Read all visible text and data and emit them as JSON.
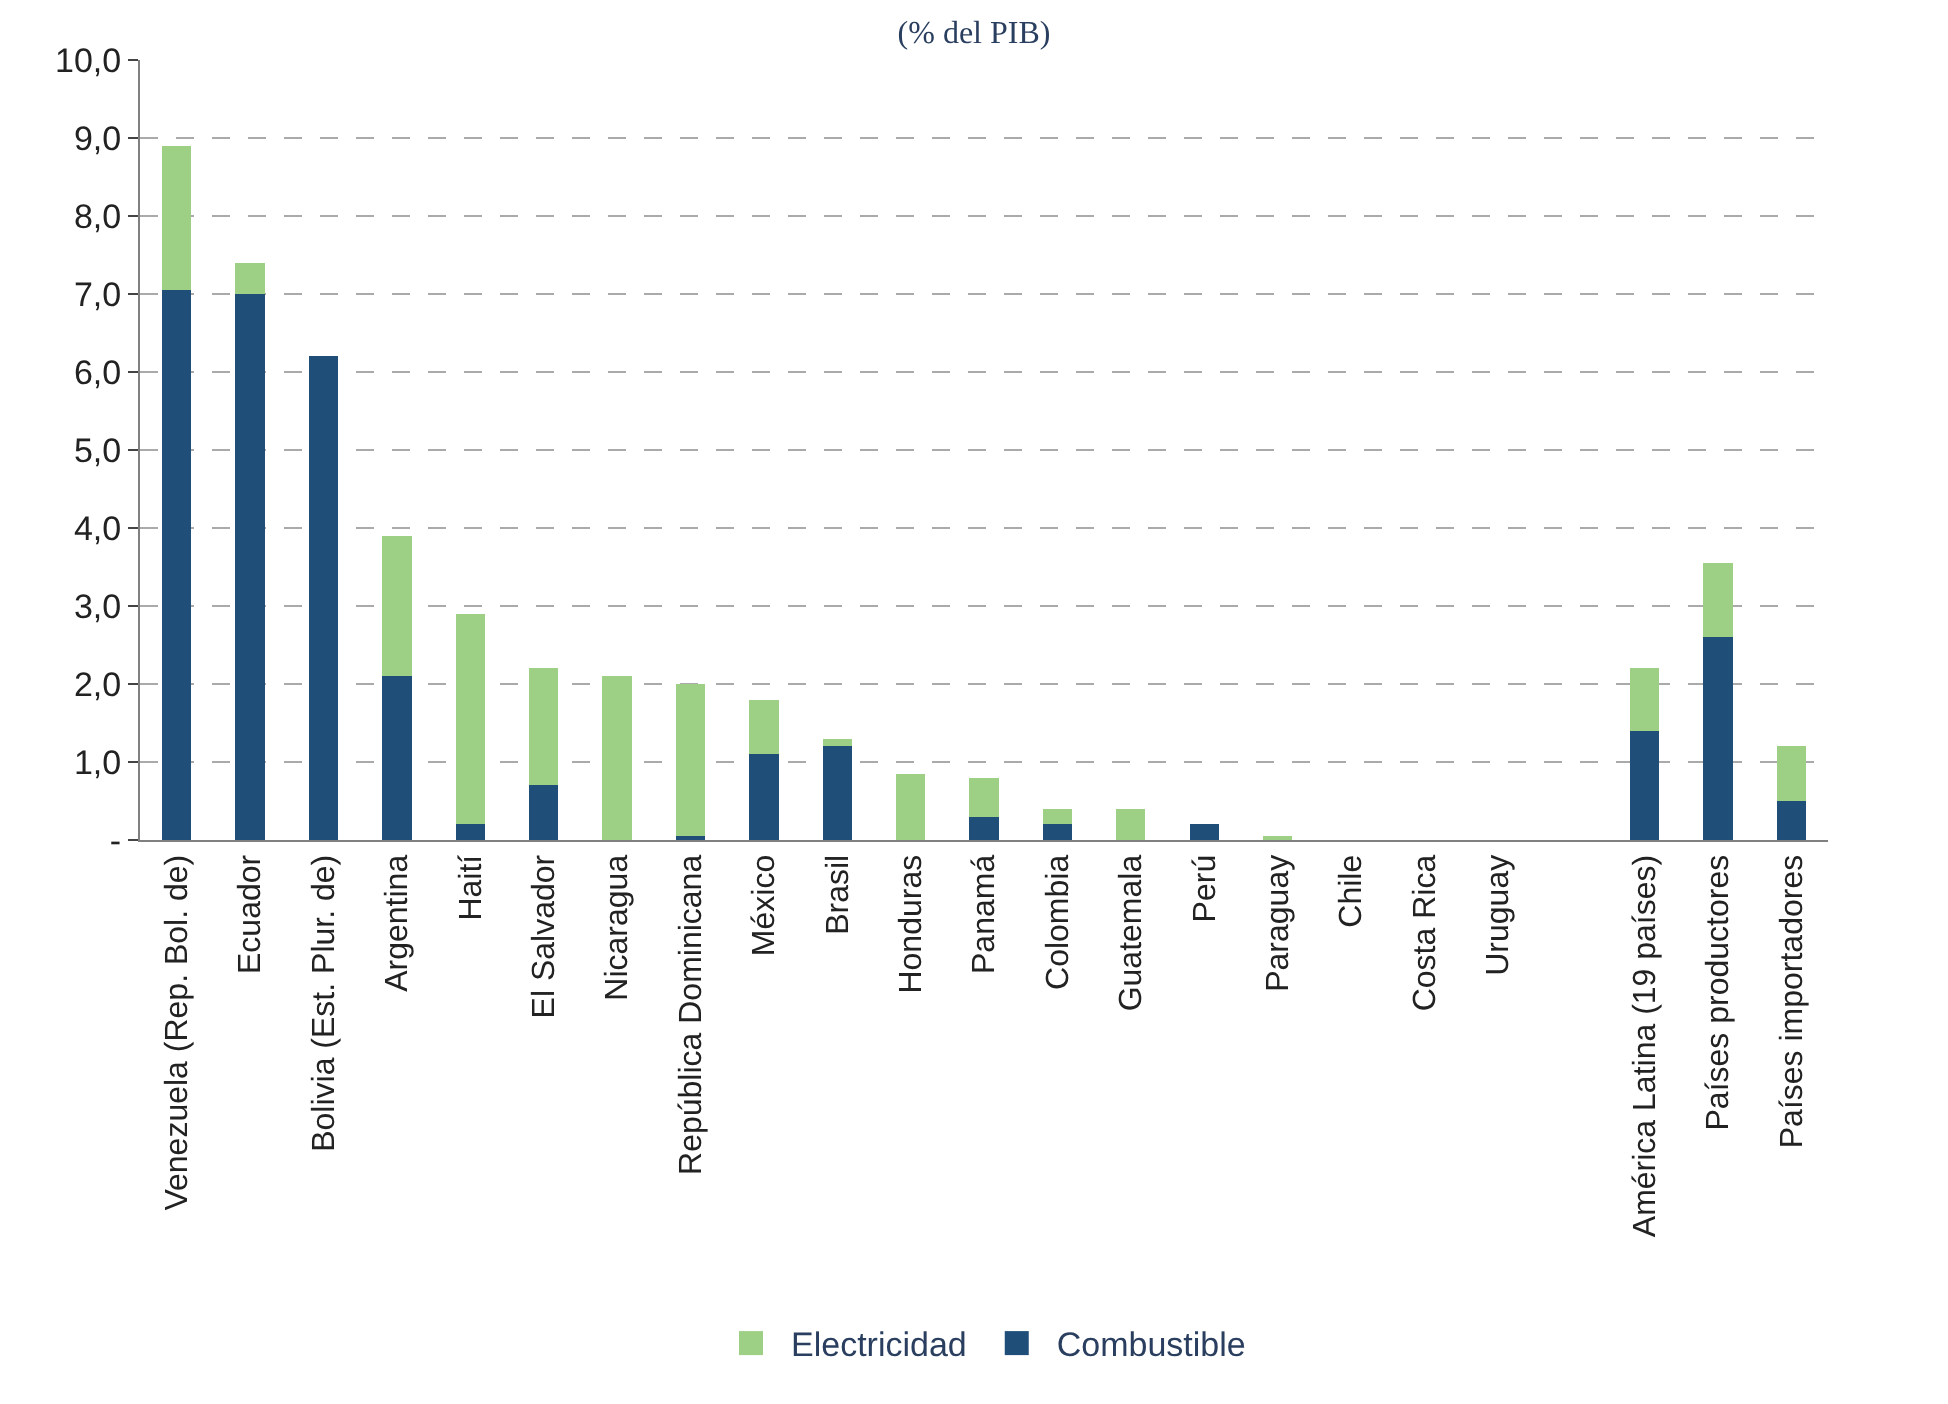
{
  "chart_data": {
    "type": "bar",
    "stacked": true,
    "subtitle": "(% del PIB)",
    "categories": [
      "Venezuela (Rep. Bol. de)",
      "Ecuador",
      "Bolivia (Est. Plur. de)",
      "Argentina",
      "Haití",
      "El Salvador",
      "Nicaragua",
      "República Dominicana",
      "México",
      "Brasil",
      "Honduras",
      "Panamá",
      "Colombia",
      "Guatemala",
      "Perú",
      "Paraguay",
      "Chile",
      "Costa Rica",
      "Uruguay",
      null,
      "América Latina (19 países)",
      "Países productores",
      "Países importadores"
    ],
    "series": [
      {
        "name": "Combustible",
        "color": "#1f4e79",
        "values": [
          7.05,
          7.0,
          6.2,
          2.1,
          0.2,
          0.7,
          0,
          0.05,
          1.1,
          1.2,
          0,
          0.3,
          0.2,
          0,
          0.2,
          0,
          0,
          0,
          0,
          null,
          1.4,
          2.6,
          0.5
        ]
      },
      {
        "name": "Electricidad",
        "color": "#9dcf85",
        "values": [
          1.85,
          0.4,
          0,
          1.8,
          2.7,
          1.5,
          2.1,
          1.95,
          0.7,
          0.1,
          0.85,
          0.5,
          0.2,
          0.4,
          0,
          0.05,
          0,
          0,
          0,
          null,
          0.8,
          0.95,
          0.7
        ]
      }
    ],
    "ylim": [
      0,
      10
    ],
    "yticks": [
      {
        "value": 0,
        "label": "-"
      },
      {
        "value": 1,
        "label": "1,0"
      },
      {
        "value": 2,
        "label": "2,0"
      },
      {
        "value": 3,
        "label": "3,0"
      },
      {
        "value": 4,
        "label": "4,0"
      },
      {
        "value": 5,
        "label": "5,0"
      },
      {
        "value": 6,
        "label": "6,0"
      },
      {
        "value": 7,
        "label": "7,0"
      },
      {
        "value": 8,
        "label": "8,0"
      },
      {
        "value": 9,
        "label": "9,0"
      },
      {
        "value": 10,
        "label": "10,0"
      }
    ],
    "grid": "y",
    "legend": "bottom"
  }
}
